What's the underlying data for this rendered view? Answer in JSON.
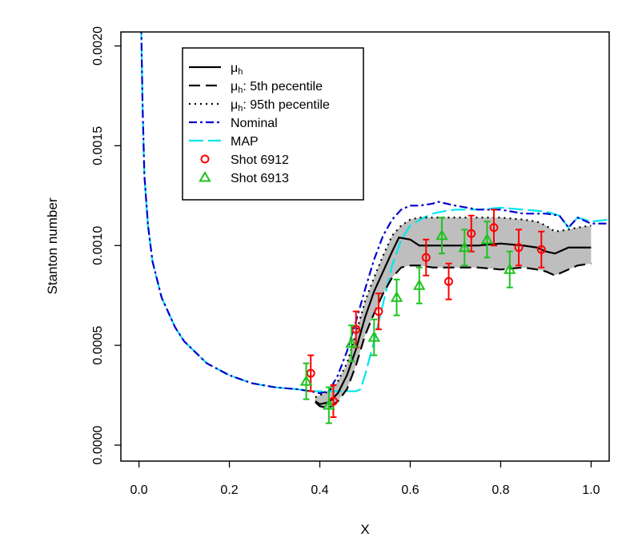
{
  "chart_data": {
    "type": "line",
    "title": "",
    "xlabel": "X",
    "ylabel": "Stanton number",
    "xlim": [
      -0.04,
      1.04
    ],
    "ylim": [
      -8e-05,
      0.00207
    ],
    "x_ticks": [
      "0.0",
      "0.2",
      "0.4",
      "0.6",
      "0.8",
      "1.0"
    ],
    "y_ticks": [
      "0.0000",
      "0.0005",
      "0.0010",
      "0.0015",
      "0.0020"
    ],
    "legend_position": "top-left",
    "band": {
      "color": "#bebebe",
      "x": [
        0.39,
        0.4,
        0.42,
        0.44,
        0.46,
        0.48,
        0.5,
        0.52,
        0.54,
        0.56,
        0.58,
        0.6,
        0.62,
        0.65,
        0.7,
        0.75,
        0.8,
        0.85,
        0.88,
        0.9,
        0.92,
        0.95,
        0.97,
        1.0
      ],
      "lower": [
        0.000215,
        0.000195,
        0.000185,
        0.00022,
        0.00028,
        0.0004,
        0.00055,
        0.00066,
        0.00076,
        0.00084,
        0.00089,
        0.0009,
        0.0009,
        0.00089,
        0.00089,
        0.00089,
        0.00088,
        0.00089,
        0.00088,
        0.00087,
        0.00085,
        0.00088,
        0.0009,
        0.00091
      ],
      "upper": [
        0.00024,
        0.00025,
        0.00027,
        0.00032,
        0.00041,
        0.00056,
        0.00072,
        0.00084,
        0.00095,
        0.00105,
        0.0011,
        0.00113,
        0.00114,
        0.00114,
        0.00114,
        0.00114,
        0.00114,
        0.00113,
        0.00112,
        0.0011,
        0.00107,
        0.00108,
        0.00109,
        0.0011
      ]
    },
    "series": [
      {
        "name": "μh",
        "color": "#000000",
        "dash": "",
        "x": [
          0.39,
          0.4,
          0.42,
          0.44,
          0.46,
          0.48,
          0.5,
          0.52,
          0.54,
          0.56,
          0.575,
          0.6,
          0.62,
          0.65,
          0.7,
          0.75,
          0.8,
          0.85,
          0.88,
          0.9,
          0.92,
          0.95,
          0.97,
          1.0
        ],
        "y": [
          0.00022,
          0.000205,
          0.000215,
          0.00026,
          0.00035,
          0.00048,
          0.00064,
          0.00077,
          0.00087,
          0.00097,
          0.00104,
          0.00103,
          0.001,
          0.001,
          0.001,
          0.001,
          0.00101,
          0.001,
          0.00099,
          0.00097,
          0.00096,
          0.00099,
          0.00099,
          0.00099
        ]
      },
      {
        "name": "μh: 5th pecentile",
        "color": "#000000",
        "dash": "14,7",
        "x": [
          0.39,
          0.4,
          0.42,
          0.44,
          0.46,
          0.48,
          0.5,
          0.52,
          0.54,
          0.56,
          0.58,
          0.6,
          0.62,
          0.65,
          0.7,
          0.75,
          0.8,
          0.85,
          0.88,
          0.9,
          0.92,
          0.95,
          0.97,
          1.0
        ],
        "y": [
          0.000215,
          0.000195,
          0.000185,
          0.00022,
          0.00028,
          0.0004,
          0.00055,
          0.00066,
          0.00076,
          0.00084,
          0.00089,
          0.0009,
          0.0009,
          0.00089,
          0.00089,
          0.00089,
          0.00088,
          0.00089,
          0.00088,
          0.00087,
          0.00085,
          0.00088,
          0.0009,
          0.00091
        ]
      },
      {
        "name": "μh: 95th pecentile",
        "color": "#000000",
        "dash": "2,5",
        "x": [
          0.39,
          0.4,
          0.42,
          0.44,
          0.46,
          0.48,
          0.5,
          0.52,
          0.54,
          0.56,
          0.58,
          0.6,
          0.62,
          0.65,
          0.7,
          0.75,
          0.8,
          0.85,
          0.88,
          0.9,
          0.92,
          0.95,
          0.97,
          1.0
        ],
        "y": [
          0.00024,
          0.00025,
          0.00027,
          0.00032,
          0.00041,
          0.00056,
          0.00072,
          0.00084,
          0.00095,
          0.00105,
          0.0011,
          0.00113,
          0.00114,
          0.00114,
          0.00114,
          0.00114,
          0.00114,
          0.00113,
          0.00112,
          0.0011,
          0.00107,
          0.00108,
          0.00109,
          0.0011
        ]
      },
      {
        "name": "Nominal",
        "color": "#0000cd",
        "dash": "10,4,3,4",
        "x": [
          0.005,
          0.008,
          0.012,
          0.02,
          0.03,
          0.05,
          0.08,
          0.1,
          0.15,
          0.2,
          0.25,
          0.3,
          0.35,
          0.38,
          0.4,
          0.42,
          0.44,
          0.46,
          0.48,
          0.5,
          0.52,
          0.54,
          0.56,
          0.58,
          0.6,
          0.62,
          0.65,
          0.66,
          0.7,
          0.75,
          0.8,
          0.85,
          0.9,
          0.93,
          0.95,
          0.97,
          1.0,
          1.04
        ],
        "y": [
          0.0021,
          0.0017,
          0.00135,
          0.0011,
          0.00092,
          0.00074,
          0.00059,
          0.00052,
          0.00041,
          0.00035,
          0.00031,
          0.00029,
          0.00028,
          0.00027,
          0.00026,
          0.00027,
          0.00035,
          0.00047,
          0.00062,
          0.00078,
          0.00093,
          0.00105,
          0.00113,
          0.00118,
          0.0012,
          0.0012,
          0.00121,
          0.00122,
          0.0012,
          0.00118,
          0.00118,
          0.00116,
          0.00116,
          0.00115,
          0.00109,
          0.00114,
          0.00111,
          0.00111
        ]
      },
      {
        "name": "MAP",
        "color": "#00e5ee",
        "dash": "18,6",
        "x": [
          0.005,
          0.008,
          0.012,
          0.02,
          0.03,
          0.05,
          0.08,
          0.1,
          0.15,
          0.2,
          0.25,
          0.3,
          0.35,
          0.38,
          0.4,
          0.44,
          0.48,
          0.49,
          0.5,
          0.52,
          0.54,
          0.56,
          0.58,
          0.6,
          0.63,
          0.65,
          0.67,
          0.7,
          0.75,
          0.8,
          0.85,
          0.9,
          0.93,
          0.95,
          0.97,
          1.0,
          1.04
        ],
        "y": [
          0.0021,
          0.0017,
          0.00135,
          0.0011,
          0.00092,
          0.00074,
          0.00059,
          0.00052,
          0.00041,
          0.00035,
          0.00031,
          0.00029,
          0.00028,
          0.00027,
          0.00027,
          0.00027,
          0.00027,
          0.00028,
          0.00035,
          0.00052,
          0.00071,
          0.0009,
          0.00103,
          0.0011,
          0.00114,
          0.00116,
          0.00117,
          0.00118,
          0.00118,
          0.00119,
          0.00118,
          0.00117,
          0.00115,
          0.00109,
          0.00114,
          0.00112,
          0.00113
        ]
      }
    ],
    "points": [
      {
        "name": "Shot 6912",
        "color": "#ff0000",
        "marker": "circle",
        "data": [
          {
            "x": 0.38,
            "y": 0.00036,
            "lo": 0.00027,
            "hi": 0.00045
          },
          {
            "x": 0.43,
            "y": 0.00022,
            "lo": 0.00014,
            "hi": 0.0003
          },
          {
            "x": 0.48,
            "y": 0.00058,
            "lo": 0.00049,
            "hi": 0.00067
          },
          {
            "x": 0.53,
            "y": 0.00067,
            "lo": 0.00058,
            "hi": 0.00076
          },
          {
            "x": 0.635,
            "y": 0.00094,
            "lo": 0.00085,
            "hi": 0.00103
          },
          {
            "x": 0.685,
            "y": 0.00082,
            "lo": 0.00073,
            "hi": 0.00091
          },
          {
            "x": 0.735,
            "y": 0.00106,
            "lo": 0.00097,
            "hi": 0.00115
          },
          {
            "x": 0.785,
            "y": 0.00109,
            "lo": 0.001,
            "hi": 0.00118
          },
          {
            "x": 0.84,
            "y": 0.00099,
            "lo": 0.0009,
            "hi": 0.00108
          },
          {
            "x": 0.89,
            "y": 0.00098,
            "lo": 0.00089,
            "hi": 0.00107
          }
        ]
      },
      {
        "name": "Shot 6913",
        "color": "#1ec21e",
        "marker": "triangle",
        "data": [
          {
            "x": 0.37,
            "y": 0.00032,
            "lo": 0.00023,
            "hi": 0.00041
          },
          {
            "x": 0.42,
            "y": 0.0002,
            "lo": 0.00011,
            "hi": 0.00029
          },
          {
            "x": 0.47,
            "y": 0.00051,
            "lo": 0.00042,
            "hi": 0.0006
          },
          {
            "x": 0.52,
            "y": 0.00054,
            "lo": 0.00045,
            "hi": 0.00063
          },
          {
            "x": 0.57,
            "y": 0.00074,
            "lo": 0.00065,
            "hi": 0.00083
          },
          {
            "x": 0.62,
            "y": 0.0008,
            "lo": 0.00071,
            "hi": 0.00089
          },
          {
            "x": 0.67,
            "y": 0.00105,
            "lo": 0.00096,
            "hi": 0.00114
          },
          {
            "x": 0.72,
            "y": 0.00099,
            "lo": 0.0009,
            "hi": 0.00108
          },
          {
            "x": 0.77,
            "y": 0.00103,
            "lo": 0.00094,
            "hi": 0.00112
          },
          {
            "x": 0.82,
            "y": 0.00088,
            "lo": 0.00079,
            "hi": 0.00097
          }
        ]
      }
    ]
  }
}
